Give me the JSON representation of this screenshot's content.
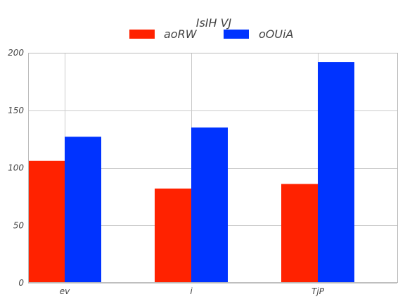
{
  "chart_data": {
    "type": "bar",
    "title": "IsIH VJ",
    "xlabel": "",
    "ylabel": "",
    "categories": [
      "ev",
      "i",
      "TjP"
    ],
    "series": [
      {
        "name": "aoRW",
        "values": [
          106,
          82,
          86
        ],
        "color": "#ff2200"
      },
      {
        "name": "oOUiA",
        "values": [
          127,
          135,
          192
        ],
        "color": "#0033ff"
      }
    ],
    "ylim": [
      0,
      200
    ],
    "yticks": [
      0,
      50,
      100,
      150,
      200
    ],
    "grid": true,
    "legend_position": "top"
  }
}
